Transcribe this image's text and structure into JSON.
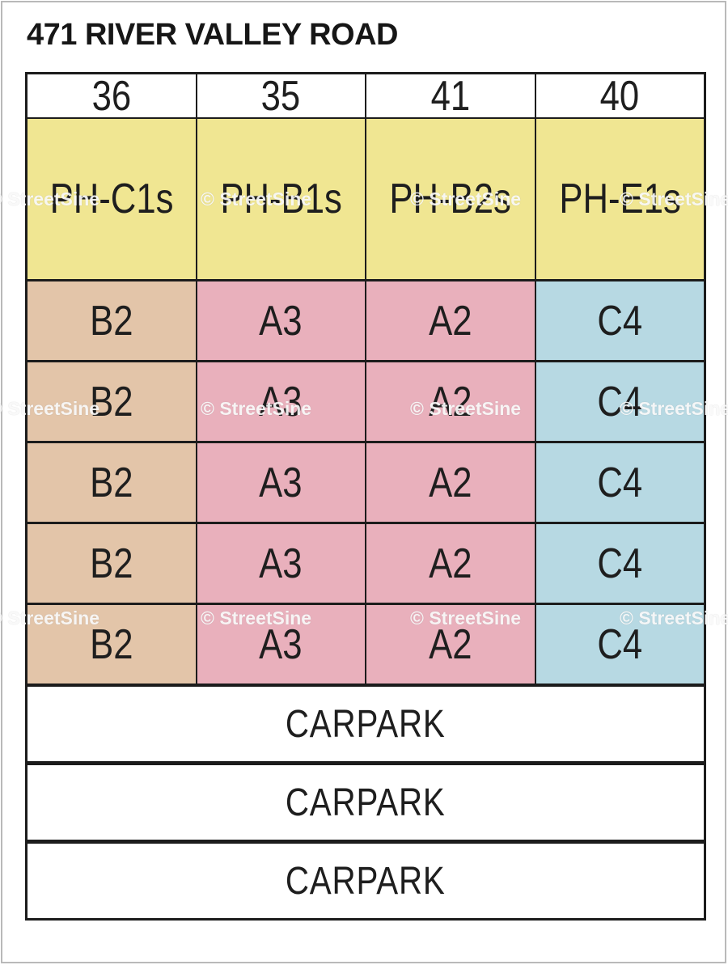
{
  "page": {
    "title": "471 RIVER VALLEY ROAD"
  },
  "watermark": {
    "text": "© StreetSine"
  },
  "stack": {
    "header": {
      "columns": [
        "36",
        "35",
        "41",
        "40"
      ]
    },
    "penthouse": {
      "color": "#f0e692",
      "units": [
        "PH-C1s",
        "PH-B1s",
        "PH-B2s",
        "PH-E1s"
      ]
    },
    "unit_colors": [
      "#e3c5a9",
      "#e9b0bc",
      "#e9b0bc",
      "#b7d9e3"
    ],
    "floors": [
      {
        "units": [
          "B2",
          "A3",
          "A2",
          "C4"
        ]
      },
      {
        "units": [
          "B2",
          "A3",
          "A2",
          "C4"
        ]
      },
      {
        "units": [
          "B2",
          "A3",
          "A2",
          "C4"
        ]
      },
      {
        "units": [
          "B2",
          "A3",
          "A2",
          "C4"
        ]
      },
      {
        "units": [
          "B2",
          "A3",
          "A2",
          "C4"
        ]
      }
    ],
    "carpark": {
      "rows": [
        "CARPARK",
        "CARPARK",
        "CARPARK"
      ]
    }
  }
}
